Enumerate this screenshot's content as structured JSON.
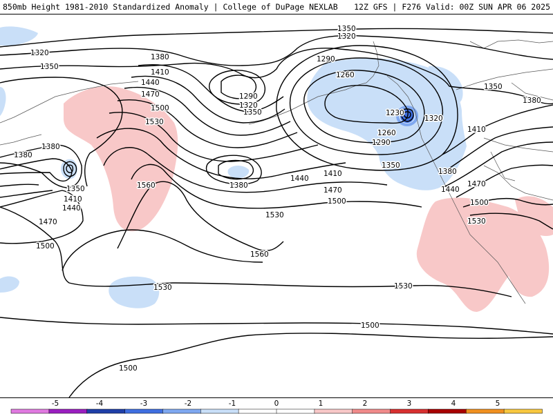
{
  "header": {
    "title_left": "850mb Height 1981-2010 Standardized Anomaly | College of DuPage NEXLAB",
    "title_right": "12Z GFS | F276 Valid: 00Z SUN APR 06 2025"
  },
  "contour_labels": [
    {
      "id": "lbl-1350-n",
      "text": "1350"
    },
    {
      "id": "lbl-1320-n",
      "text": "1320"
    },
    {
      "id": "lbl-1320-w",
      "text": "1320"
    },
    {
      "id": "lbl-1350-w",
      "text": "1350"
    },
    {
      "id": "lbl-1380-top",
      "text": "1380"
    },
    {
      "id": "lbl-1410-top",
      "text": "1410"
    },
    {
      "id": "lbl-1440-top",
      "text": "1440"
    },
    {
      "id": "lbl-1470-top",
      "text": "1470"
    },
    {
      "id": "lbl-1500-top",
      "text": "1500"
    },
    {
      "id": "lbl-1530-top",
      "text": "1530"
    },
    {
      "id": "lbl-1290-c",
      "text": "1290"
    },
    {
      "id": "lbl-1320-c",
      "text": "1320"
    },
    {
      "id": "lbl-1350-c",
      "text": "1350"
    },
    {
      "id": "lbl-1290-ne",
      "text": "1290"
    },
    {
      "id": "lbl-1260-ne",
      "text": "1260"
    },
    {
      "id": "lbl-1230-ne",
      "text": "1230"
    },
    {
      "id": "lbl-1320-ne",
      "text": "1320"
    },
    {
      "id": "lbl-1260-se",
      "text": "1260"
    },
    {
      "id": "lbl-1290-se",
      "text": "1290"
    },
    {
      "id": "lbl-1350-se",
      "text": "1350"
    },
    {
      "id": "lbl-1380-e",
      "text": "1380"
    },
    {
      "id": "lbl-1410-e",
      "text": "1410"
    },
    {
      "id": "lbl-1440-e",
      "text": "1440"
    },
    {
      "id": "lbl-1470-e",
      "text": "1470"
    },
    {
      "id": "lbl-1500-e",
      "text": "1500"
    },
    {
      "id": "lbl-1530-e",
      "text": "1530"
    },
    {
      "id": "lbl-1350-far-e",
      "text": "1350"
    },
    {
      "id": "lbl-1380-far-e",
      "text": "1380"
    },
    {
      "id": "lbl-1410-far-e",
      "text": "1410"
    },
    {
      "id": "lbl-1380-low",
      "text": "1380"
    },
    {
      "id": "lbl-1410-mid",
      "text": "1410"
    },
    {
      "id": "lbl-1440-mid",
      "text": "1440"
    },
    {
      "id": "lbl-1470-mid",
      "text": "1470"
    },
    {
      "id": "lbl-1500-mid",
      "text": "1500"
    },
    {
      "id": "lbl-1530-mid",
      "text": "1530"
    },
    {
      "id": "lbl-1560-mid",
      "text": "1560"
    },
    {
      "id": "lbl-1560-w",
      "text": "1560"
    },
    {
      "id": "lbl-1380-wa",
      "text": "1380"
    },
    {
      "id": "lbl-1380-wb",
      "text": "1380"
    },
    {
      "id": "lbl-1350-wlow",
      "text": "1350"
    },
    {
      "id": "lbl-1410-wlow",
      "text": "1410"
    },
    {
      "id": "lbl-1440-wlow",
      "text": "1440"
    },
    {
      "id": "lbl-1470-wlow",
      "text": "1470"
    },
    {
      "id": "lbl-1500-wlow",
      "text": "1500"
    },
    {
      "id": "lbl-1530-s1",
      "text": "1530"
    },
    {
      "id": "lbl-1530-s2",
      "text": "1530"
    },
    {
      "id": "lbl-1500-s1",
      "text": "1500"
    },
    {
      "id": "lbl-1500-s2",
      "text": "1500"
    }
  ],
  "colorbar": {
    "ticks": [
      "-5",
      "-4",
      "-3",
      "-2",
      "-1",
      "0",
      "1",
      "2",
      "3",
      "4",
      "5"
    ],
    "colors": [
      "#e07ae0",
      "#9a1fc0",
      "#1f3fa8",
      "#3f6fe0",
      "#7fa8f0",
      "#c9dff8",
      "#ffffff",
      "#ffffff",
      "#f8c8c8",
      "#f08a8a",
      "#d83030",
      "#a80000",
      "#f09020",
      "#f8c840"
    ]
  }
}
